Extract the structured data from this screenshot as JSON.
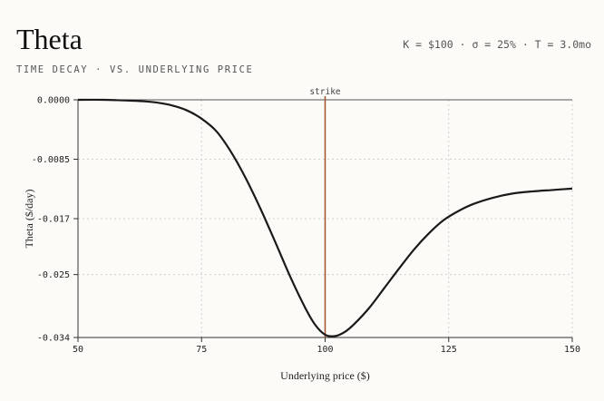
{
  "header": {
    "title": "Theta",
    "subtitle": "TIME DECAY · VS. UNDERLYING PRICE",
    "params": "K = $100 · σ = 25% · T = 3.0mo"
  },
  "colors": {
    "curve": "#1a1a1a",
    "strike_line": "#a0522d",
    "grid": "#d0d0d0",
    "axis": "#333333"
  },
  "chart_data": {
    "type": "line",
    "title": "Theta",
    "subtitle": "TIME DECAY · VS. UNDERLYING PRICE",
    "xlabel": "Underlying price ($)",
    "ylabel": "Theta ($/day)",
    "xlim": [
      50,
      150
    ],
    "ylim": [
      -0.034,
      0.0
    ],
    "x_ticks": [
      50,
      75,
      100,
      125,
      150
    ],
    "x_tick_labels": [
      "50",
      "75",
      "100",
      "125",
      "150"
    ],
    "y_ticks": [
      0.0,
      -0.0085,
      -0.017,
      -0.025,
      -0.034
    ],
    "y_tick_labels": [
      "0.0000",
      "-0.0085",
      "-0.017",
      "-0.025",
      "-0.034"
    ],
    "grid": true,
    "annotations": [
      {
        "type": "vline",
        "x": 100,
        "label": "strike"
      }
    ],
    "series": [
      {
        "values_x": [
          50,
          55,
          60,
          63,
          66,
          69,
          72,
          75,
          78,
          81,
          84,
          87,
          90,
          93,
          96,
          98,
          100,
          102,
          104,
          106,
          109,
          112,
          115,
          118,
          121,
          124,
          127,
          130,
          134,
          138,
          142,
          146,
          150
        ],
        "values_y": [
          0.0,
          0.0,
          -0.0001,
          -0.0002,
          -0.0004,
          -0.0008,
          -0.0015,
          -0.0027,
          -0.0045,
          -0.0075,
          -0.0113,
          -0.0157,
          -0.0205,
          -0.0254,
          -0.0298,
          -0.0322,
          -0.0336,
          -0.0338,
          -0.0332,
          -0.032,
          -0.0297,
          -0.0269,
          -0.0241,
          -0.0214,
          -0.0191,
          -0.0172,
          -0.0159,
          -0.0149,
          -0.014,
          -0.0134,
          -0.0131,
          -0.0129,
          -0.0127
        ]
      }
    ]
  }
}
